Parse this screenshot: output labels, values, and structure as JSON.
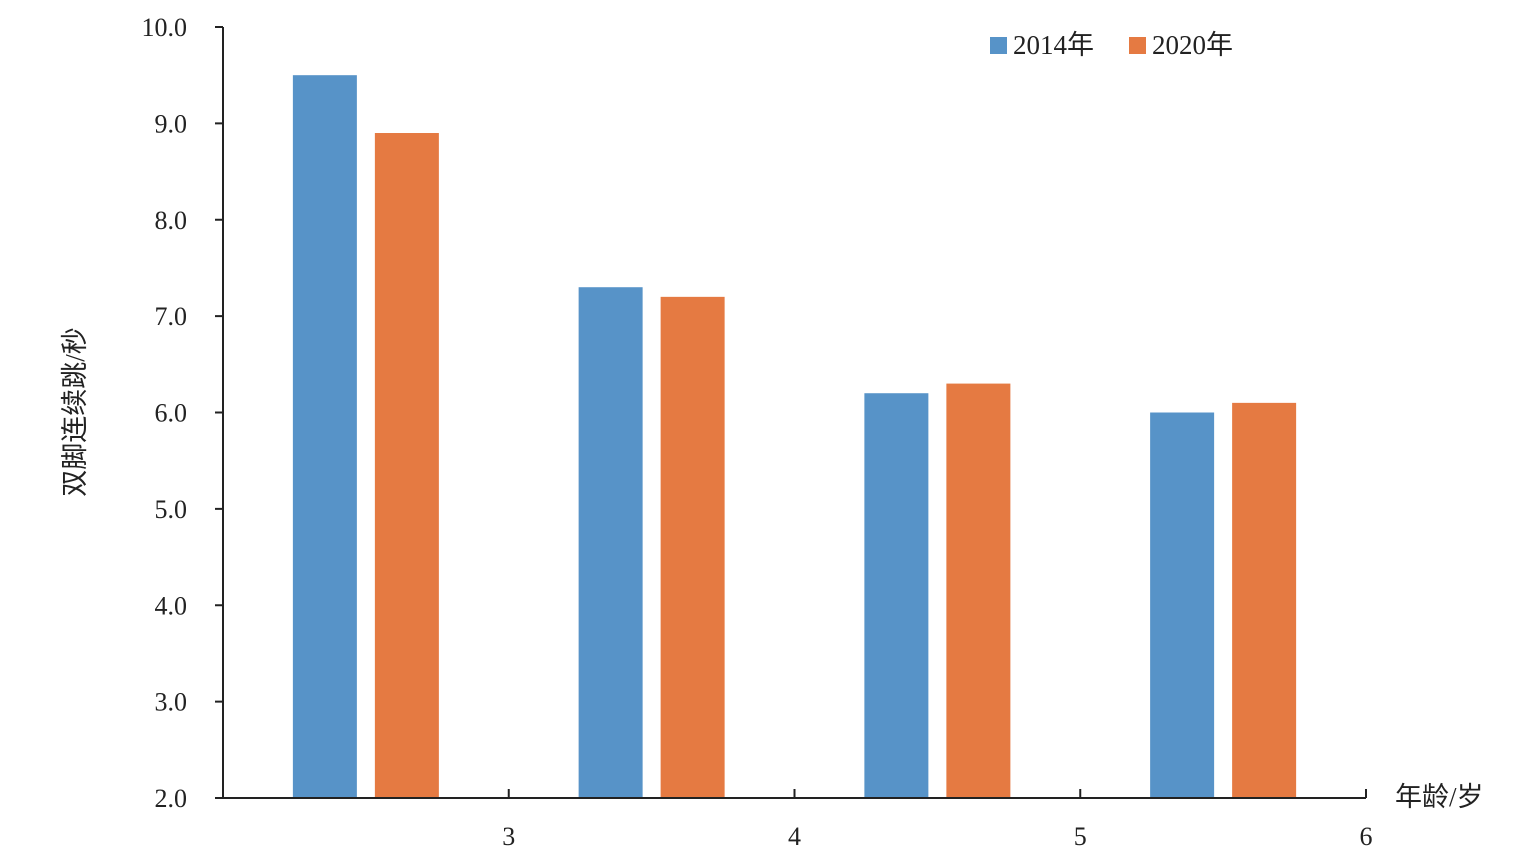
{
  "chart_data": {
    "type": "bar",
    "title": "",
    "categories": [
      "3",
      "4",
      "5",
      "6"
    ],
    "series": [
      {
        "name": "2014年",
        "color": "#5793c8",
        "values": [
          9.5,
          7.3,
          6.2,
          6.0
        ]
      },
      {
        "name": "2020年",
        "color": "#e57a42",
        "values": [
          8.9,
          7.2,
          6.3,
          6.1
        ]
      }
    ],
    "xlabel": "年龄/岁",
    "ylabel": "双脚连续跳/秒",
    "ylim": [
      2.0,
      10.0
    ],
    "yticks": [
      "2.0",
      "3.0",
      "4.0",
      "5.0",
      "6.0",
      "7.0",
      "8.0",
      "9.0",
      "10.0"
    ],
    "grid": false,
    "legend": "top-right"
  }
}
